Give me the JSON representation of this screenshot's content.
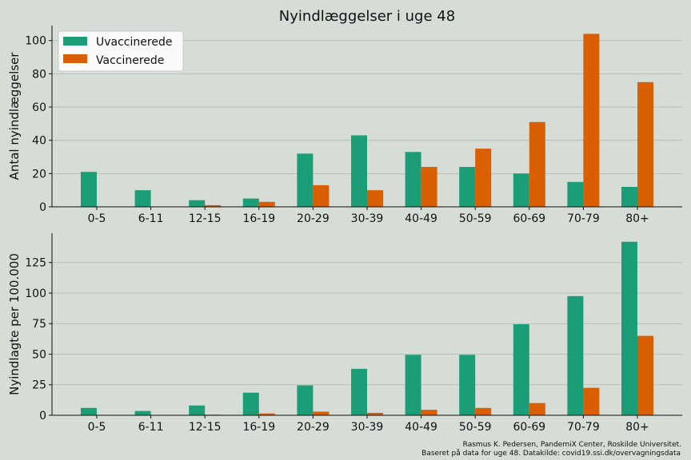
{
  "title": "Nyindlæggelser i uge 48",
  "colors": {
    "unvaccinated": "#1b9e77",
    "vaccinated": "#d95f02",
    "grid": "#b0b7b0",
    "background": "#d6dcd6"
  },
  "legend": {
    "placement": "upper-left",
    "entries": [
      "Uvaccinerede",
      "Vaccinerede"
    ]
  },
  "footer": {
    "line1": "Rasmus K. Pedersen, PandemiX Center, Roskilde Universitet.",
    "line2": "Baseret på data for uge 48. Datakilde: covid19.ssi.dk/overvagningsdata"
  },
  "chart_data": [
    {
      "type": "bar",
      "ylabel": "Antal nyindlæggelser",
      "categories": [
        "0-5",
        "6-11",
        "12-15",
        "16-19",
        "20-29",
        "30-39",
        "40-49",
        "50-59",
        "60-69",
        "70-79",
        "80+"
      ],
      "series": [
        {
          "name": "Uvaccinerede",
          "values": [
            21,
            10,
            4,
            5,
            32,
            43,
            33,
            24,
            20,
            15,
            12
          ]
        },
        {
          "name": "Vaccinerede",
          "values": [
            0,
            0,
            1,
            3,
            13,
            10,
            24,
            35,
            51,
            104,
            75
          ]
        }
      ],
      "ylim": [
        0,
        109
      ],
      "yticks": [
        0,
        20,
        40,
        60,
        80,
        100
      ],
      "grid": true
    },
    {
      "type": "bar",
      "ylabel": "Nyindlagte per 100.000",
      "categories": [
        "0-5",
        "6-11",
        "12-15",
        "16-19",
        "20-29",
        "30-39",
        "40-49",
        "50-59",
        "60-69",
        "70-79",
        "80+"
      ],
      "series": [
        {
          "name": "Uvaccinerede",
          "values": [
            6,
            3.5,
            8,
            18.5,
            24.5,
            38,
            49.5,
            49.5,
            74.5,
            97.5,
            142
          ]
        },
        {
          "name": "Vaccinerede",
          "values": [
            0,
            0,
            0.5,
            1.5,
            3,
            2,
            4.5,
            6,
            10,
            22.5,
            65
          ]
        }
      ],
      "ylim": [
        0,
        149
      ],
      "yticks": [
        0,
        25,
        50,
        75,
        100,
        125
      ],
      "grid": true
    }
  ]
}
